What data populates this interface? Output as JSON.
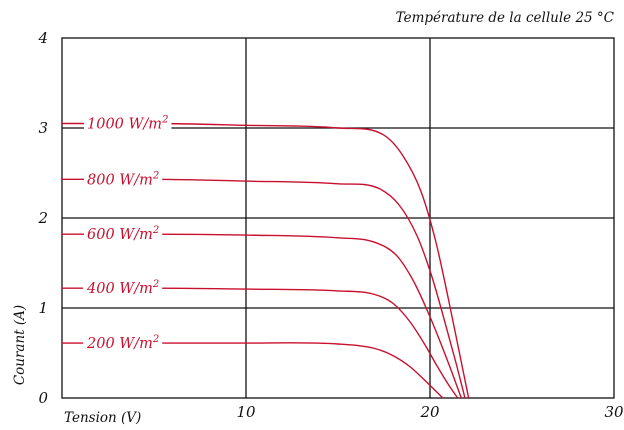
{
  "chart_data": {
    "type": "line",
    "title": "",
    "xlabel": "Tension (V)",
    "ylabel": "Courant (A)",
    "annotation": "Température de la cellule 25 °C",
    "xlim": [
      0,
      30
    ],
    "ylim": [
      0,
      4
    ],
    "xticks": [
      10,
      20,
      30
    ],
    "yticks": [
      0,
      1,
      2,
      3,
      4
    ],
    "grid": true,
    "series_color": "#c8102e",
    "axis_color": "#111111",
    "series": [
      {
        "name": "1000 W/m",
        "sup": "2",
        "x": [
          0,
          5,
          10,
          15,
          17.5,
          18.5,
          19.5,
          20.3,
          21,
          21.6,
          22.1
        ],
        "y": [
          3.05,
          3.05,
          3.03,
          3.0,
          2.92,
          2.7,
          2.3,
          1.75,
          1.1,
          0.5,
          0
        ]
      },
      {
        "name": "800 W/m",
        "sup": "2",
        "x": [
          0,
          5,
          10,
          15,
          17.2,
          18.3,
          19.3,
          20.1,
          20.8,
          21.4,
          21.9
        ],
        "y": [
          2.43,
          2.43,
          2.41,
          2.38,
          2.33,
          2.15,
          1.8,
          1.35,
          0.85,
          0.4,
          0
        ]
      },
      {
        "name": "600 W/m",
        "sup": "2",
        "x": [
          0,
          5,
          10,
          15,
          17,
          18.2,
          19.1,
          19.9,
          20.6,
          21.2,
          21.7
        ],
        "y": [
          1.82,
          1.82,
          1.81,
          1.78,
          1.73,
          1.58,
          1.3,
          0.95,
          0.6,
          0.28,
          0
        ]
      },
      {
        "name": "400 W/m",
        "sup": "2",
        "x": [
          0,
          5,
          10,
          15,
          17,
          18,
          18.9,
          19.7,
          20.4,
          21,
          21.5
        ],
        "y": [
          1.22,
          1.22,
          1.21,
          1.19,
          1.15,
          1.05,
          0.85,
          0.6,
          0.35,
          0.15,
          0
        ]
      },
      {
        "name": "200 W/m",
        "sup": "2",
        "x": [
          0,
          5,
          10,
          15,
          17,
          18,
          18.9,
          19.6,
          20.2,
          20.7
        ],
        "y": [
          0.61,
          0.61,
          0.61,
          0.6,
          0.55,
          0.47,
          0.35,
          0.22,
          0.1,
          0
        ]
      }
    ]
  }
}
